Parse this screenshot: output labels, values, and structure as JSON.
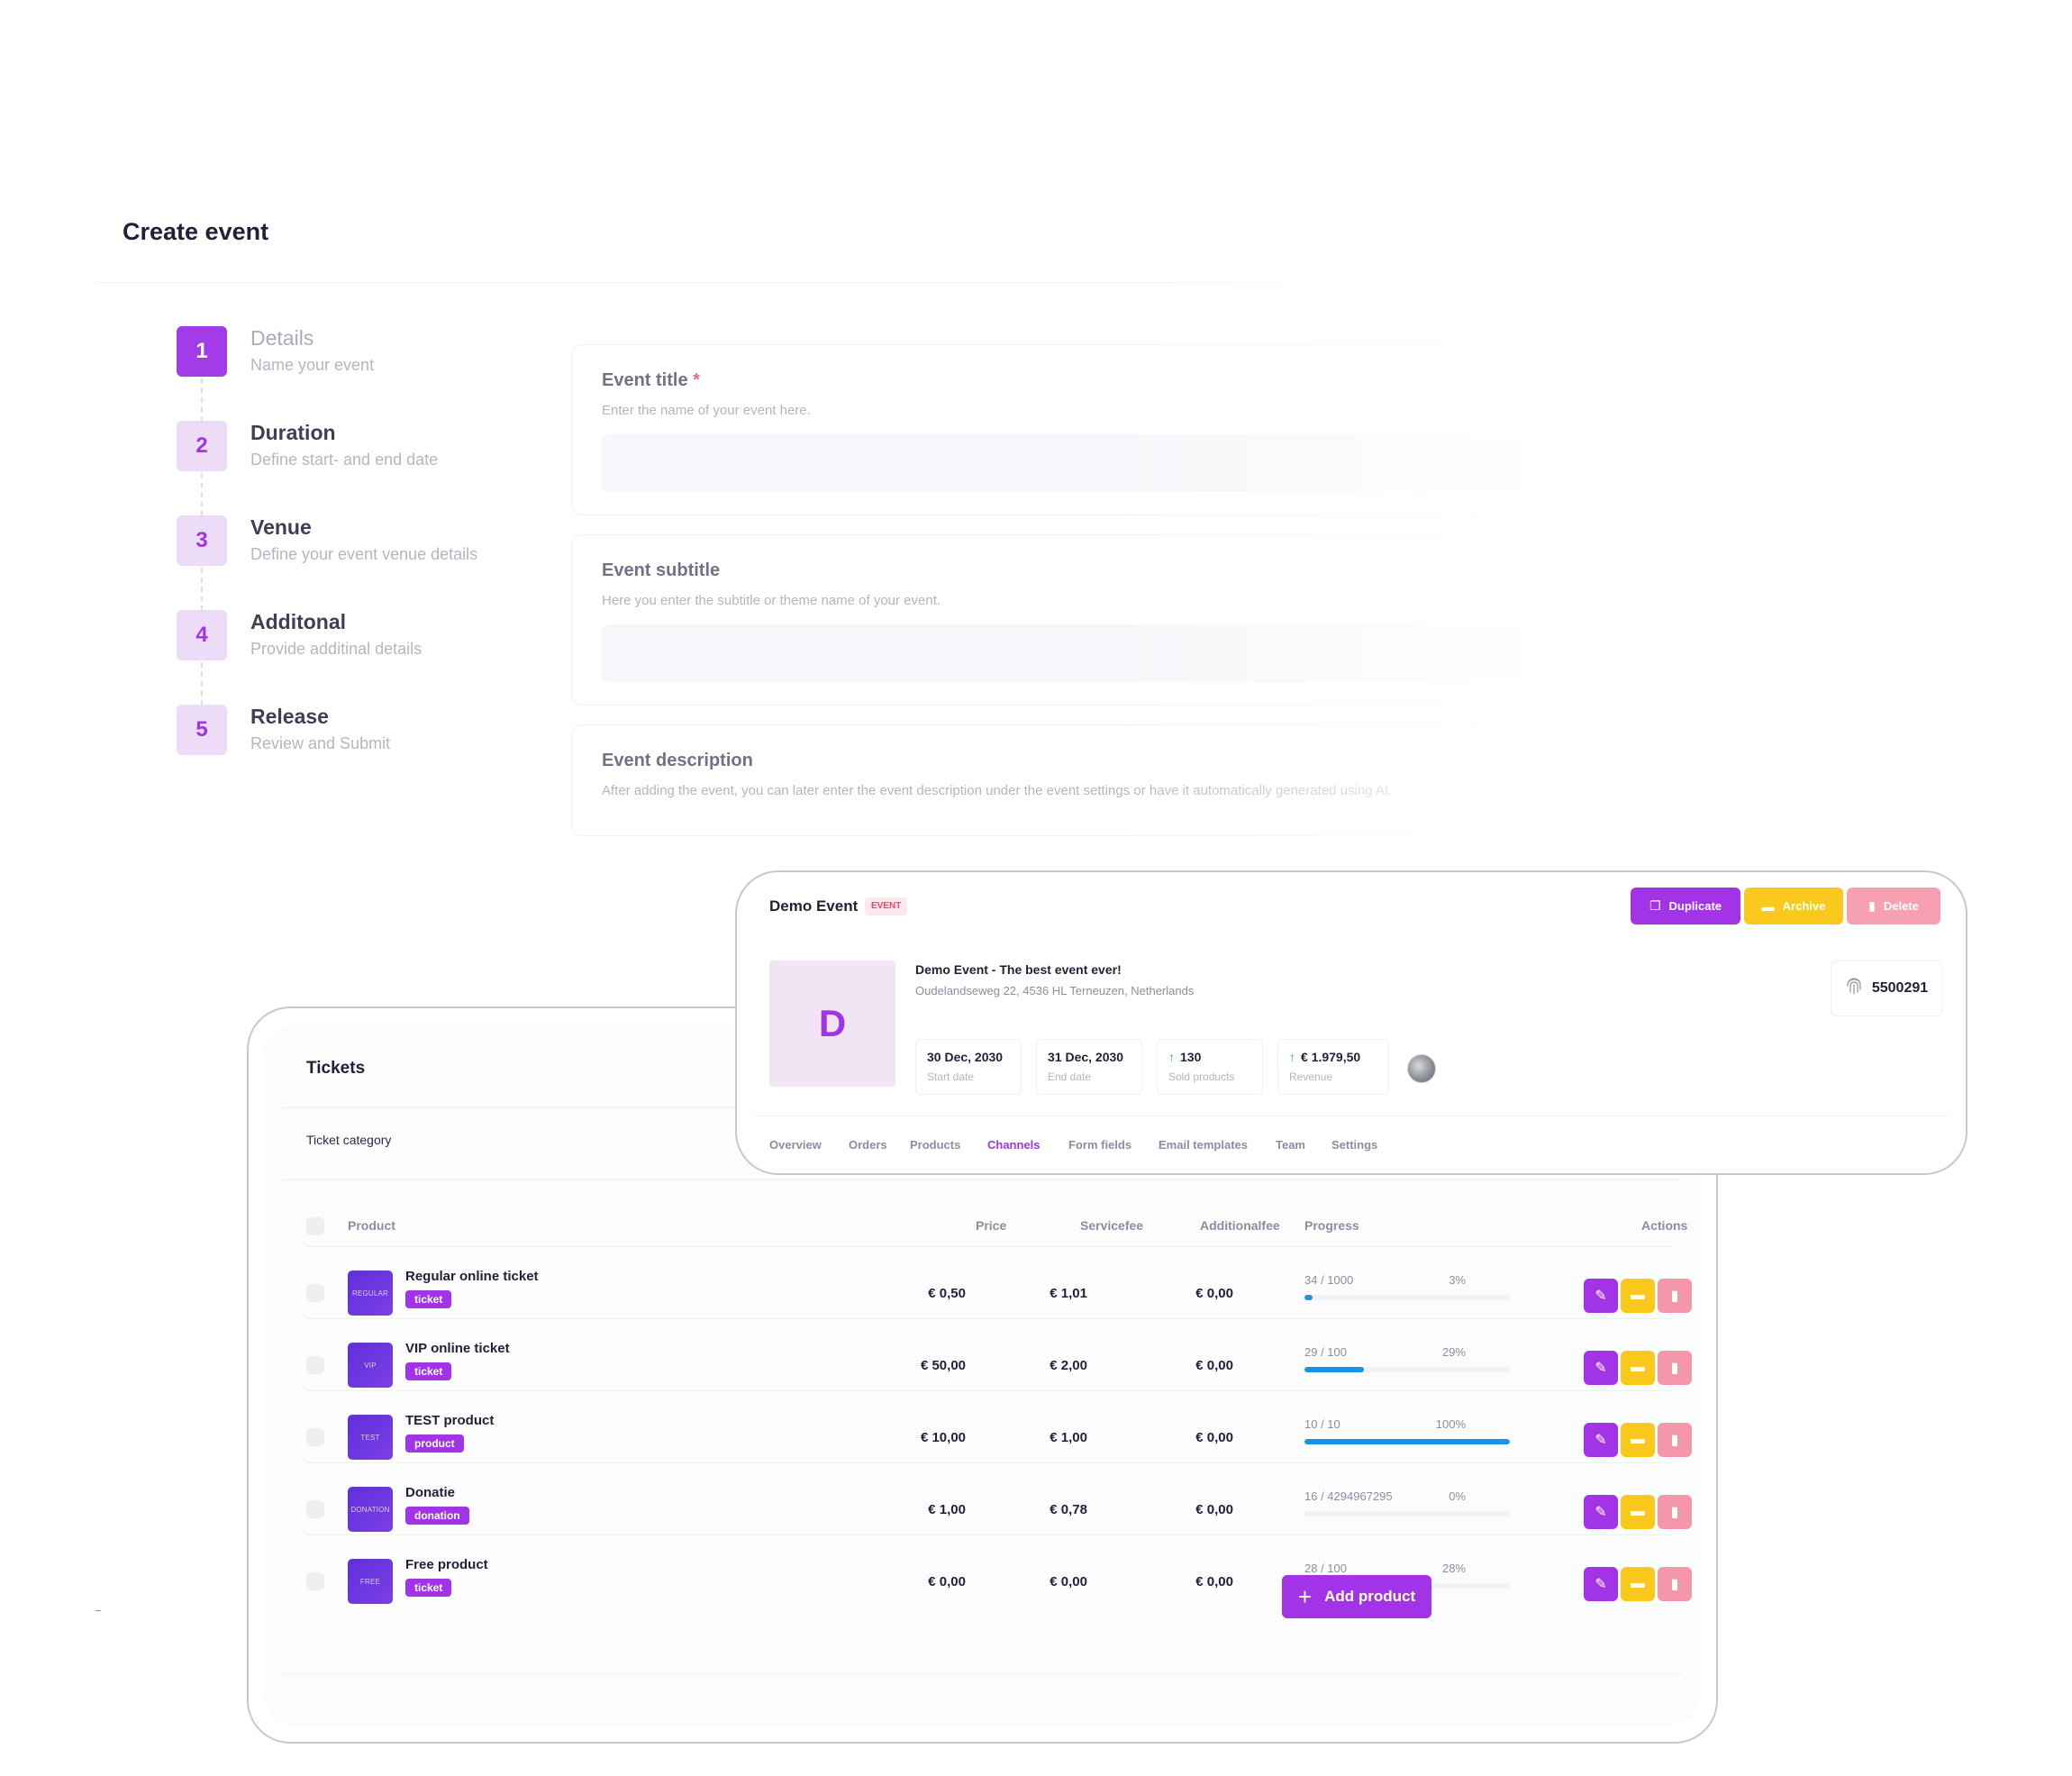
{
  "create_event": {
    "title": "Create event",
    "steps": [
      {
        "number": "1",
        "title": "Details",
        "subtitle": "Name your event",
        "active": true
      },
      {
        "number": "2",
        "title": "Duration",
        "subtitle": "Define start- and end date",
        "active": false
      },
      {
        "number": "3",
        "title": "Venue",
        "subtitle": "Define your event venue details",
        "active": false
      },
      {
        "number": "4",
        "title": "Additonal",
        "subtitle": "Provide additinal details",
        "active": false
      },
      {
        "number": "5",
        "title": "Release",
        "subtitle": "Review and Submit",
        "active": false
      }
    ],
    "fields": {
      "title": {
        "label": "Event title",
        "required_mark": "*",
        "help": "Enter the name of your event here."
      },
      "subtitle": {
        "label": "Event subtitle",
        "help": "Here you enter the subtitle or theme name of your event."
      },
      "description": {
        "label": "Event description",
        "help": "After adding the event, you can later enter the event description under the event settings or have it automatically generated using AI."
      }
    }
  },
  "tickets": {
    "title": "Tickets",
    "category_label": "Ticket category",
    "columns": {
      "product": "Product",
      "price": "Price",
      "servicefee": "Servicefee",
      "additionalfee": "Additionalfee",
      "progress": "Progress",
      "actions": "Actions"
    },
    "rows": [
      {
        "thumb": "REGULAR",
        "name": "Regular online ticket",
        "tag": "ticket",
        "price": "€ 0,50",
        "servicefee": "€ 1,01",
        "additionalfee": "€ 0,00",
        "progress_text": "34 / 1000",
        "progress_pct": "3%",
        "progress_fraction": 0.03
      },
      {
        "thumb": "VIP",
        "name": "VIP online ticket",
        "tag": "ticket",
        "price": "€ 50,00",
        "servicefee": "€ 2,00",
        "additionalfee": "€ 0,00",
        "progress_text": "29 / 100",
        "progress_pct": "29%",
        "progress_fraction": 0.29
      },
      {
        "thumb": "TEST",
        "name": "TEST product",
        "tag": "product",
        "price": "€ 10,00",
        "servicefee": "€ 1,00",
        "additionalfee": "€ 0,00",
        "progress_text": "10 / 10",
        "progress_pct": "100%",
        "progress_fraction": 1.0
      },
      {
        "thumb": "DONATION",
        "name": "Donatie",
        "tag": "donation",
        "price": "€ 1,00",
        "servicefee": "€ 0,78",
        "additionalfee": "€ 0,00",
        "progress_text": "16 / 4294967295",
        "progress_pct": "0%",
        "progress_fraction": 0.0
      },
      {
        "thumb": "FREE",
        "name": "Free product",
        "tag": "ticket",
        "price": "€ 0,00",
        "servicefee": "€ 0,00",
        "additionalfee": "€ 0,00",
        "progress_text": "28 / 100",
        "progress_pct": "28%",
        "progress_fraction": 0.28
      }
    ],
    "add_button_label": "Add product"
  },
  "event": {
    "title": "Demo Event",
    "badge": "EVENT",
    "buttons": {
      "duplicate": "Duplicate",
      "archive": "Archive",
      "delete": "Delete"
    },
    "avatar_letter": "D",
    "name": "Demo Event - The best event ever!",
    "address": "Oudelandseweg 22, 4536 HL Terneuzen, Netherlands",
    "stats": [
      {
        "value": "30 Dec, 2030",
        "label": "Start date",
        "trend_up": false
      },
      {
        "value": "31 Dec, 2030",
        "label": "End date",
        "trend_up": false
      },
      {
        "value": "130",
        "label": "Sold products",
        "trend_up": true
      },
      {
        "value": "€ 1.979,50",
        "label": "Revenue",
        "trend_up": true
      }
    ],
    "id": "5500291",
    "tabs": [
      {
        "label": "Overview",
        "active": false
      },
      {
        "label": "Orders",
        "active": false
      },
      {
        "label": "Products",
        "active": false
      },
      {
        "label": "Channels",
        "active": true
      },
      {
        "label": "Form fields",
        "active": false
      },
      {
        "label": "Email templates",
        "active": false
      },
      {
        "label": "Team",
        "active": false
      },
      {
        "label": "Settings",
        "active": false
      }
    ]
  },
  "colors": {
    "accent_purple": "#a233e6",
    "archive_yellow": "#fbc81e",
    "delete_pink": "#f597aa",
    "progress_blue": "#1993e6"
  },
  "icons": [
    "duplicate-icon",
    "folder-icon",
    "trash-icon",
    "pencil-icon",
    "fingerprint-icon",
    "arrow-up-icon",
    "plus-icon"
  ]
}
